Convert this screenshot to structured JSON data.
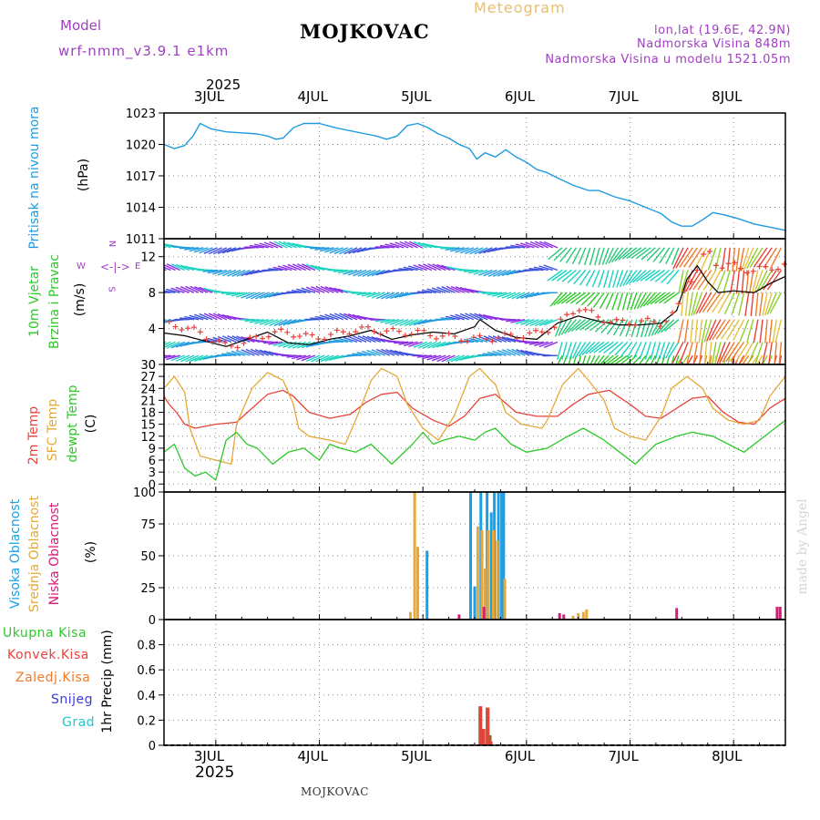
{
  "header": {
    "model_label": "Model",
    "model_name": "wrf-nmm_v3.9.1 e1km",
    "title": "MOJKOVAC",
    "subtitle": "Meteogram",
    "location": "lon,lat (19.6E, 42.9N)",
    "elevation": "Nadmorska Visina 848m",
    "model_elevation": "Nadmorska Visina u modelu 1521.05m",
    "footer_name": "MOJKOVAC",
    "credit": "made by Angel"
  },
  "colors": {
    "pressure": "#1e9be0",
    "t2m": "#e8433a",
    "sfc": "#e6a836",
    "dewpt": "#2ec82a",
    "high_cloud": "#1aa0e6",
    "mid_cloud": "#e6a836",
    "low_cloud": "#d81a78",
    "total_precip": "#2ec82a",
    "conv_precip": "#e8433a",
    "frz_precip": "#f07a28",
    "snow": "#3c3cd8",
    "hail": "#20c8c8",
    "header_purple": "#a040c0",
    "header_gold": "#e6c070"
  },
  "time_axis": {
    "year": "2025",
    "days": [
      "3JUL",
      "4JUL",
      "5JUL",
      "6JUL",
      "7JUL",
      "8JUL"
    ],
    "range_days": [
      2.5,
      8.5
    ]
  },
  "chart_data": [
    {
      "type": "line",
      "panel": "pressure",
      "ylabel": "Pritisak na nivou mora",
      "unit": "(hPa)",
      "ylim": [
        1011,
        1023
      ],
      "yticks": [
        "1011",
        "1014",
        "1017",
        "1020",
        "1023"
      ],
      "grid": true,
      "x": [
        2.5,
        2.6,
        2.7,
        2.78,
        2.85,
        2.95,
        3.1,
        3.25,
        3.4,
        3.5,
        3.58,
        3.65,
        3.75,
        3.85,
        4.0,
        4.15,
        4.3,
        4.45,
        4.55,
        4.65,
        4.75,
        4.85,
        4.95,
        5.05,
        5.15,
        5.25,
        5.35,
        5.45,
        5.52,
        5.6,
        5.7,
        5.8,
        5.9,
        6.0,
        6.1,
        6.2,
        6.3,
        6.45,
        6.6,
        6.7,
        6.85,
        7.0,
        7.15,
        7.3,
        7.4,
        7.5,
        7.6,
        7.7,
        7.8,
        7.9,
        8.05,
        8.2,
        8.35,
        8.5
      ],
      "values": [
        1020.0,
        1019.6,
        1019.9,
        1020.8,
        1022.0,
        1021.5,
        1021.2,
        1021.1,
        1021.0,
        1020.8,
        1020.5,
        1020.6,
        1021.6,
        1022.0,
        1022.0,
        1021.6,
        1021.3,
        1021.0,
        1020.8,
        1020.5,
        1020.8,
        1021.8,
        1022.0,
        1021.6,
        1021.0,
        1020.6,
        1020.0,
        1019.6,
        1018.6,
        1019.2,
        1018.8,
        1019.5,
        1018.8,
        1018.3,
        1017.6,
        1017.3,
        1016.8,
        1016.1,
        1015.6,
        1015.6,
        1015.0,
        1014.6,
        1014.0,
        1013.4,
        1012.6,
        1012.2,
        1012.2,
        1012.8,
        1013.5,
        1013.3,
        1012.9,
        1012.4,
        1012.1,
        1011.8
      ],
      "series": [
        {
          "name": "Pritisak na nivou mora"
        }
      ]
    },
    {
      "type": "line",
      "panel": "wind",
      "ylabel": "10m Vjetar Brzina i Pravac",
      "unit": "(m/s)",
      "ylim": [
        0,
        14
      ],
      "yticks": [
        "0",
        "4",
        "8",
        "12"
      ],
      "grid": true,
      "compass": [
        "N",
        "E",
        "S",
        "W"
      ],
      "series": [
        {
          "name": "speed",
          "x": [
            2.5,
            2.7,
            2.9,
            3.1,
            3.3,
            3.5,
            3.7,
            3.9,
            4.1,
            4.3,
            4.5,
            4.7,
            4.9,
            5.1,
            5.3,
            5.5,
            5.55,
            5.7,
            5.9,
            6.1,
            6.3,
            6.5,
            6.7,
            6.9,
            7.1,
            7.3,
            7.45,
            7.55,
            7.65,
            7.75,
            7.85,
            8.0,
            8.2,
            8.35,
            8.5
          ],
          "values": [
            3.5,
            3.2,
            2.6,
            2.0,
            2.8,
            3.6,
            2.4,
            2.2,
            2.8,
            3.2,
            3.8,
            2.8,
            3.3,
            3.6,
            3.4,
            4.2,
            5.0,
            3.8,
            3.0,
            2.8,
            4.6,
            5.4,
            4.8,
            4.4,
            4.4,
            4.6,
            6.0,
            9.5,
            11.0,
            9.2,
            8.0,
            8.2,
            8.0,
            9.0,
            9.8
          ]
        },
        {
          "name": "gust",
          "x": [
            2.5,
            2.7,
            2.9,
            3.1,
            3.3,
            3.5,
            3.7,
            3.9,
            4.1,
            4.3,
            4.5,
            4.7,
            4.9,
            5.1,
            5.3,
            5.5,
            5.7,
            5.9,
            6.1,
            6.3,
            6.5,
            6.7,
            6.9,
            7.1,
            7.3,
            7.45,
            7.55,
            7.65,
            7.75,
            7.85,
            8.0,
            8.2,
            8.35,
            8.5
          ],
          "values": [
            4.5,
            4.2,
            3.2,
            2.0,
            2.5,
            3.4,
            3.6,
            3.0,
            3.2,
            3.8,
            3.9,
            3.6,
            3.6,
            3.3,
            3.0,
            2.8,
            3.0,
            3.2,
            3.4,
            4.4,
            6.4,
            5.2,
            4.6,
            4.8,
            4.6,
            5.8,
            9.0,
            10.5,
            12.8,
            11.0,
            11.0,
            10.4,
            10.8,
            11.0
          ]
        }
      ]
    },
    {
      "type": "line",
      "panel": "temperature",
      "ylabels": [
        "2m Temp",
        "SFC Temp",
        "dewpt Temp"
      ],
      "unit": "(C)",
      "ylim": [
        -2,
        30
      ],
      "yticks": [
        "0",
        "3",
        "6",
        "9",
        "12",
        "15",
        "18",
        "21",
        "24",
        "27",
        "30"
      ],
      "grid": true,
      "series": [
        {
          "name": "2m Temp",
          "x": [
            2.5,
            2.55,
            2.62,
            2.7,
            2.8,
            3.0,
            3.2,
            3.35,
            3.5,
            3.65,
            3.75,
            3.9,
            4.1,
            4.3,
            4.45,
            4.6,
            4.75,
            4.9,
            5.1,
            5.25,
            5.4,
            5.55,
            5.7,
            5.9,
            6.1,
            6.3,
            6.45,
            6.6,
            6.8,
            7.0,
            7.15,
            7.3,
            7.45,
            7.6,
            7.75,
            7.9,
            8.05,
            8.2,
            8.35,
            8.5
          ],
          "values": [
            22,
            20,
            18,
            15,
            14,
            15,
            15.5,
            19,
            22.5,
            23.5,
            22,
            18,
            16.5,
            17.5,
            20.5,
            22.5,
            23,
            19,
            16,
            14.5,
            17,
            21.5,
            22.5,
            18,
            17,
            17,
            20,
            22.5,
            23.5,
            20,
            17,
            16.5,
            19,
            21.5,
            22,
            18,
            15.5,
            15,
            19,
            21.5
          ]
        },
        {
          "name": "SFC Temp",
          "x": [
            2.5,
            2.6,
            2.7,
            2.75,
            2.85,
            3.0,
            3.15,
            3.2,
            3.35,
            3.5,
            3.65,
            3.75,
            3.8,
            3.9,
            4.1,
            4.25,
            4.35,
            4.5,
            4.6,
            4.75,
            4.85,
            5.0,
            5.15,
            5.3,
            5.45,
            5.55,
            5.62,
            5.7,
            5.8,
            5.95,
            6.15,
            6.2,
            6.35,
            6.5,
            6.6,
            6.75,
            6.85,
            7.0,
            7.15,
            7.3,
            7.4,
            7.55,
            7.7,
            7.8,
            7.95,
            8.1,
            8.25,
            8.35,
            8.5
          ],
          "values": [
            24,
            27,
            23,
            14,
            7,
            6,
            5,
            15,
            24,
            28,
            26,
            20,
            14,
            12,
            11,
            10,
            16,
            26,
            29,
            27,
            20,
            14,
            11,
            17,
            27,
            29,
            27,
            25,
            18,
            15,
            14,
            16,
            25,
            29,
            26,
            21,
            14,
            12,
            11,
            17,
            24,
            27,
            24,
            19,
            16,
            15,
            16,
            22,
            27
          ]
        },
        {
          "name": "dewpt Temp",
          "x": [
            2.5,
            2.6,
            2.7,
            2.8,
            2.9,
            3.0,
            3.1,
            3.2,
            3.3,
            3.4,
            3.55,
            3.7,
            3.85,
            4.0,
            4.1,
            4.2,
            4.35,
            4.5,
            4.7,
            4.9,
            5.0,
            5.1,
            5.2,
            5.35,
            5.5,
            5.6,
            5.7,
            5.85,
            6.0,
            6.2,
            6.4,
            6.55,
            6.75,
            6.9,
            7.05,
            7.25,
            7.45,
            7.6,
            7.8,
            7.95,
            8.1,
            8.25,
            8.4,
            8.5
          ],
          "values": [
            8,
            10,
            4,
            2,
            3,
            1,
            11,
            13,
            10,
            9,
            5,
            8,
            9,
            6,
            10,
            9,
            8,
            10,
            5,
            10,
            13,
            10,
            11,
            12,
            11,
            13,
            14,
            10,
            8,
            9,
            12,
            14,
            11,
            8,
            5,
            10,
            12,
            13,
            12,
            10,
            8,
            11,
            14,
            16
          ]
        }
      ]
    },
    {
      "type": "bar",
      "panel": "cloud",
      "ylabels": [
        "Visoka Oblacnost",
        "Srednja Oblacnost",
        "Niska Oblacnost"
      ],
      "unit": "(%)",
      "ylim": [
        0,
        100
      ],
      "yticks": [
        "0",
        "25",
        "50",
        "75",
        "100"
      ],
      "grid": true,
      "series": [
        {
          "name": "Visoka Oblacnost",
          "x": [
            5.04,
            5.46,
            5.5,
            5.56,
            5.62,
            5.66,
            5.69,
            5.73,
            5.76,
            5.78
          ],
          "values": [
            54,
            100,
            26,
            100,
            100,
            84,
            100,
            100,
            100,
            100
          ]
        },
        {
          "name": "Srednja Oblacnost",
          "x": [
            4.88,
            4.92,
            4.95,
            5.53,
            5.57,
            5.6,
            5.63,
            5.68,
            5.72,
            5.79,
            6.45,
            6.5,
            6.55,
            6.58
          ],
          "values": [
            6,
            100,
            57,
            73,
            70,
            40,
            70,
            70,
            62,
            32,
            3,
            5,
            6,
            8
          ]
        },
        {
          "name": "Niska Oblacnost",
          "x": [
            5.35,
            5.59,
            6.32,
            6.36,
            7.45,
            8.42,
            8.45
          ],
          "values": [
            4,
            10,
            5,
            4,
            9,
            10,
            10
          ]
        }
      ]
    },
    {
      "type": "bar",
      "panel": "precip",
      "ylabels": [
        "Ukupna Kisa",
        "Konvek.Kisa",
        "Zaledj.Kisa",
        "Snijeg",
        "Grad"
      ],
      "unit": "1hr Precip (mm)",
      "ylim": [
        0,
        1
      ],
      "yticks": [
        "0",
        "0.2",
        "0.4",
        "0.6",
        "0.8"
      ],
      "grid": true,
      "series": [
        {
          "name": "Ukupna Kisa",
          "x": [
            5.55,
            5.58,
            5.62,
            5.65
          ],
          "values": [
            0.31,
            0.13,
            0.3,
            0.08
          ]
        },
        {
          "name": "Konvek.Kisa",
          "x": [
            5.56,
            5.59,
            5.63,
            5.66
          ],
          "values": [
            0.31,
            0.13,
            0.3,
            0.03
          ]
        }
      ]
    }
  ]
}
